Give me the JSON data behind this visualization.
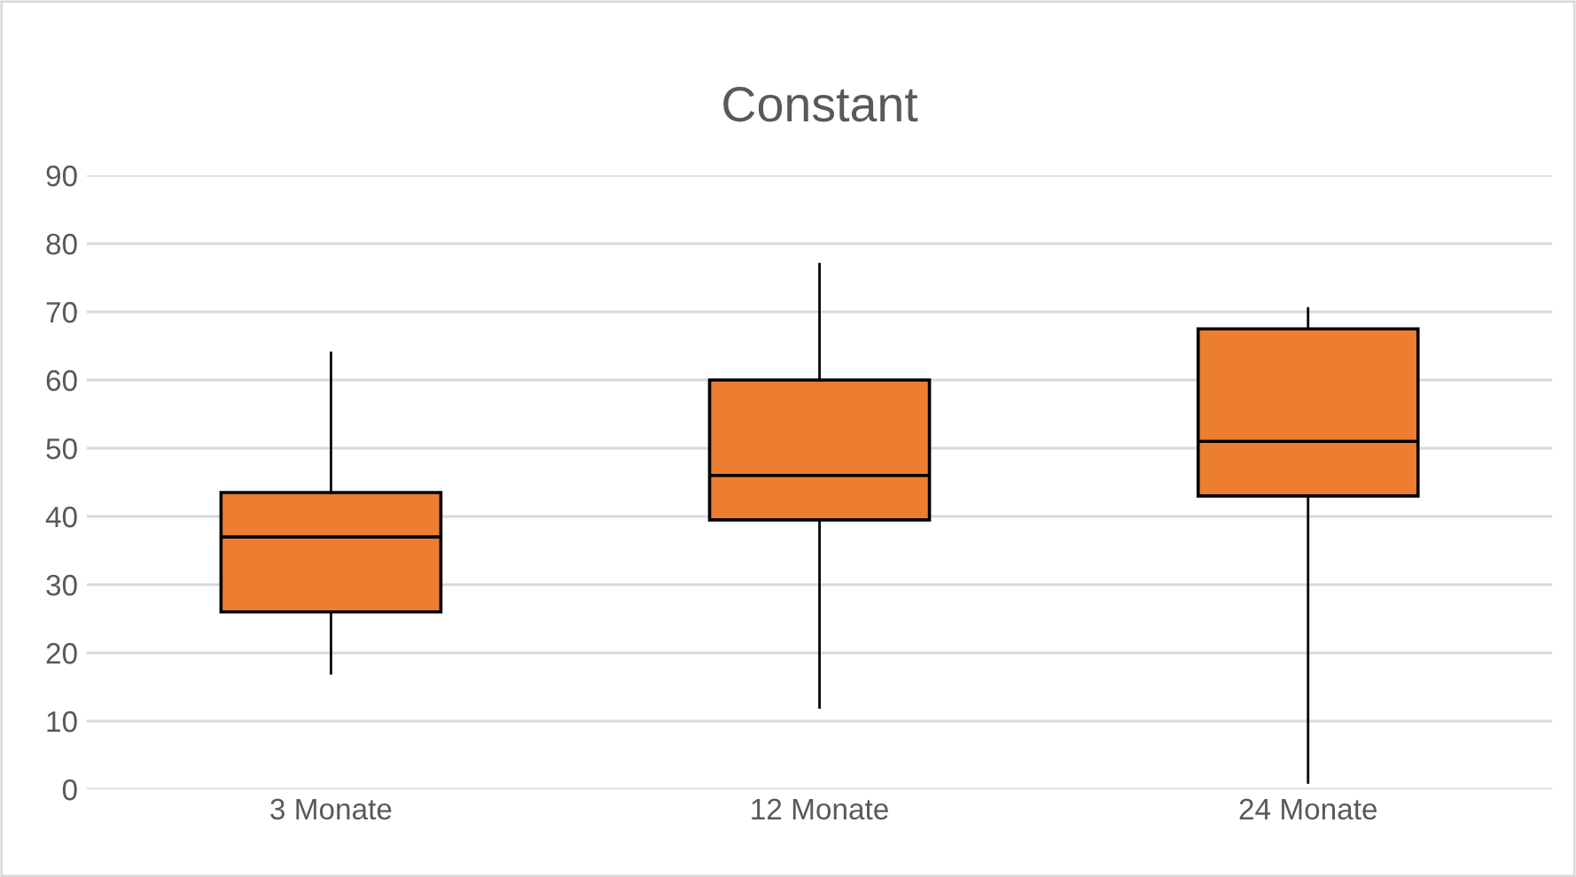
{
  "chart_data": {
    "type": "box",
    "title": "Constant",
    "categories": [
      "3 Monate",
      "12 Monate",
      "24 Monate"
    ],
    "series": [
      {
        "color": "#ed7d31",
        "boxes": [
          {
            "low": 17,
            "q1": 26,
            "median": 37,
            "q3": 43.5,
            "high": 64
          },
          {
            "low": 12,
            "q1": 39.5,
            "median": 46,
            "q3": 60,
            "high": 77
          },
          {
            "low": 1,
            "q1": 43,
            "median": 51,
            "q3": 67.5,
            "high": 70.5
          }
        ]
      }
    ],
    "ylim": [
      0,
      90
    ],
    "yticks": [
      0,
      10,
      20,
      30,
      40,
      50,
      60,
      70,
      80,
      90
    ],
    "grid": "y",
    "legend": false
  }
}
